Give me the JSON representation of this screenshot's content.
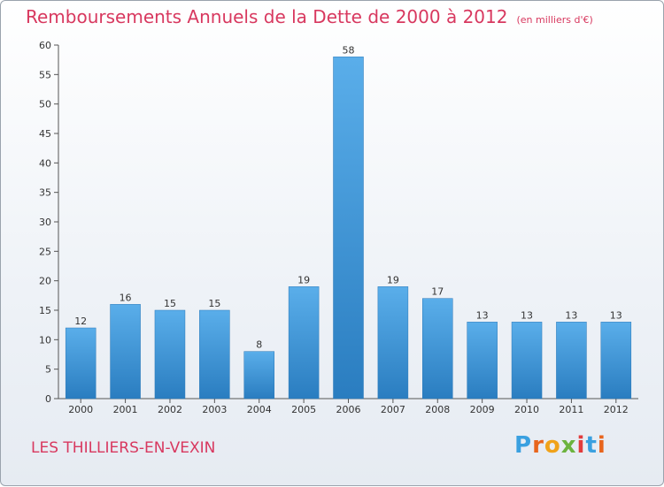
{
  "header": {
    "title": "Remboursements Annuels de la Dette de 2000 à 2012",
    "subtitle": "(en milliers d'€)"
  },
  "footer": {
    "city": "LES THILLIERS-EN-VEXIN",
    "logo_letters": [
      "P",
      "r",
      "o",
      "x",
      "i",
      "t",
      "i"
    ],
    "logo_colors": [
      "#3aa0e0",
      "#e8651d",
      "#f0a21a",
      "#6cb33f",
      "#e23c3c",
      "#3aa0e0",
      "#e8651d"
    ]
  },
  "chart_data": {
    "type": "bar",
    "categories": [
      "2000",
      "2001",
      "2002",
      "2003",
      "2004",
      "2005",
      "2006",
      "2007",
      "2008",
      "2009",
      "2010",
      "2011",
      "2012"
    ],
    "values": [
      12,
      16,
      15,
      15,
      8,
      19,
      58,
      19,
      17,
      13,
      13,
      13,
      13
    ],
    "ylim": [
      0,
      60
    ],
    "yticks": [
      0,
      5,
      10,
      15,
      20,
      25,
      30,
      35,
      40,
      45,
      50,
      55,
      60
    ],
    "grid": false,
    "bar_color": "#3b95d8",
    "data_labels": true
  }
}
